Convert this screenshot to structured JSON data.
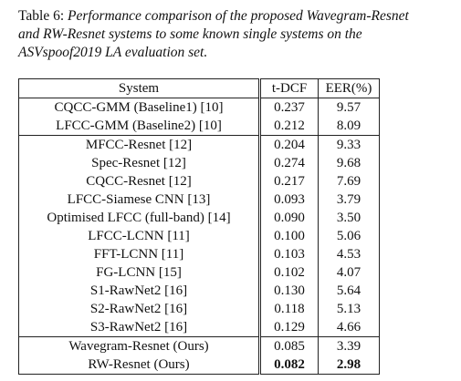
{
  "caption": {
    "label": "Table 6:",
    "text": "Performance comparison of the proposed Wavegram-Resnet and RW-Resnet systems to some known single systems on the ASVspoof2019 LA evaluation set."
  },
  "table": {
    "header": [
      "System",
      "t-DCF",
      "EER(%)"
    ],
    "groups": [
      [
        [
          "CQCC-GMM (Baseline1) [10]",
          "0.237",
          "9.57"
        ],
        [
          "LFCC-GMM (Baseline2) [10]",
          "0.212",
          "8.09"
        ]
      ],
      [
        [
          "MFCC-Resnet [12]",
          "0.204",
          "9.33"
        ],
        [
          "Spec-Resnet [12]",
          "0.274",
          "9.68"
        ],
        [
          "CQCC-Resnet [12]",
          "0.217",
          "7.69"
        ],
        [
          "LFCC-Siamese CNN [13]",
          "0.093",
          "3.79"
        ],
        [
          "Optimised LFCC (full-band) [14]",
          "0.090",
          "3.50"
        ],
        [
          "LFCC-LCNN [11]",
          "0.100",
          "5.06"
        ],
        [
          "FFT-LCNN [11]",
          "0.103",
          "4.53"
        ],
        [
          "FG-LCNN [15]",
          "0.102",
          "4.07"
        ],
        [
          "S1-RawNet2 [16]",
          "0.130",
          "5.64"
        ],
        [
          "S2-RawNet2 [16]",
          "0.118",
          "5.13"
        ],
        [
          "S3-RawNet2 [16]",
          "0.129",
          "4.66"
        ]
      ],
      [
        [
          "Wavegram-Resnet (Ours)",
          "0.085",
          "3.39"
        ],
        [
          "RW-Resnet (Ours)",
          "0.082",
          "2.98"
        ]
      ]
    ]
  }
}
